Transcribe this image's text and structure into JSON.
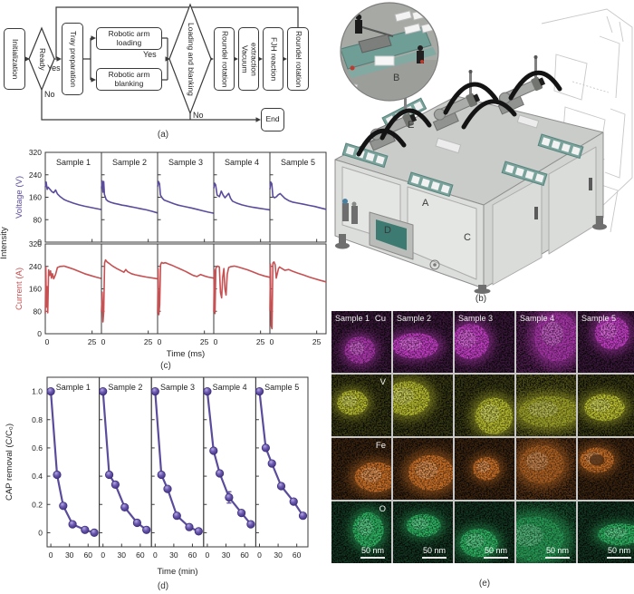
{
  "figure": {
    "captions": {
      "a": "(a)",
      "b": "(b)",
      "c": "(c)",
      "d": "(d)",
      "e": "(e)"
    }
  },
  "flowchart": {
    "nodes": {
      "initialization": "Initialization",
      "ready": "Ready",
      "tray_preparation": "Tray preparation",
      "robotic_arm_loading": "Robotic arm loading",
      "robotic_arm_blanking": "Robotic arm blanking",
      "loading_and_blanking": "Loading and blanking",
      "roundel_rotation_1": "Roundel rotation",
      "vacuum_extraction": "Vacuum extraction",
      "fjh_reaction": "FJH reaction",
      "roundel_rotation_2": "Roundel rotation",
      "end": "End"
    },
    "labels": {
      "ready_yes": "Yes",
      "ready_no": "No",
      "loading_yes": "Yes",
      "loading_no": "No"
    }
  },
  "machine": {
    "labels": {
      "a": "A",
      "b": "B",
      "c": "C",
      "d": "D",
      "e": "E"
    }
  },
  "chart_data": [
    {
      "type": "line",
      "panel": "c-top",
      "title": "Voltage traces of FJH reactions",
      "ylabel": "Voltage (V)",
      "group_ylabel": "Intensity",
      "xlabel": "Time (ms)",
      "color": "#5b4b9c",
      "ylim": [
        0,
        320
      ],
      "yticks": [
        0,
        80,
        160,
        240,
        320
      ],
      "xlim": [
        0,
        30
      ],
      "xticks": [
        0,
        25
      ],
      "series": [
        {
          "name": "Sample 1",
          "points": [
            [
              0,
              196
            ],
            [
              0.5,
              214
            ],
            [
              1,
              188
            ],
            [
              1.5,
              196
            ],
            [
              2.5,
              188
            ],
            [
              3.5,
              180
            ],
            [
              4.5,
              176
            ],
            [
              5.5,
              186
            ],
            [
              6.5,
              172
            ],
            [
              8,
              162
            ],
            [
              10,
              152
            ],
            [
              12,
              146
            ],
            [
              15,
              139
            ],
            [
              18,
              133
            ],
            [
              21,
              128
            ],
            [
              24,
              124
            ],
            [
              27,
              120
            ],
            [
              30,
              116
            ]
          ]
        },
        {
          "name": "Sample 2",
          "points": [
            [
              0,
              192
            ],
            [
              0.4,
              218
            ],
            [
              0.8,
              178
            ],
            [
              1.2,
              216
            ],
            [
              1.6,
              170
            ],
            [
              2.5,
              152
            ],
            [
              3.5,
              146
            ],
            [
              5,
              142
            ],
            [
              7,
              138
            ],
            [
              9,
              135
            ],
            [
              11,
              132
            ],
            [
              13,
              130
            ],
            [
              15,
              127
            ],
            [
              18,
              123
            ],
            [
              21,
              119
            ],
            [
              24,
              115
            ],
            [
              27,
              110
            ],
            [
              30,
              104
            ]
          ]
        },
        {
          "name": "Sample 3",
          "points": [
            [
              0,
              198
            ],
            [
              0.5,
              216
            ],
            [
              1,
              208
            ],
            [
              1.5,
              168
            ],
            [
              2.5,
              157
            ],
            [
              3.5,
              150
            ],
            [
              5,
              146
            ],
            [
              7,
              141
            ],
            [
              9,
              136
            ],
            [
              11,
              132
            ],
            [
              13,
              129
            ],
            [
              15,
              126
            ],
            [
              18,
              122
            ],
            [
              21,
              117
            ],
            [
              24,
              112
            ],
            [
              27,
              107
            ],
            [
              30,
              103
            ]
          ]
        },
        {
          "name": "Sample 4",
          "points": [
            [
              0,
              192
            ],
            [
              0.5,
              210
            ],
            [
              1,
              204
            ],
            [
              1.8,
              168
            ],
            [
              3,
              162
            ],
            [
              4,
              182
            ],
            [
              5,
              168
            ],
            [
              6,
              158
            ],
            [
              7,
              166
            ],
            [
              8,
              174
            ],
            [
              9,
              156
            ],
            [
              10,
              146
            ],
            [
              12,
              140
            ],
            [
              15,
              133
            ],
            [
              18,
              128
            ],
            [
              21,
              124
            ],
            [
              24,
              121
            ],
            [
              27,
              118
            ],
            [
              30,
              115
            ]
          ]
        },
        {
          "name": "Sample 5",
          "points": [
            [
              0,
              188
            ],
            [
              0.5,
              214
            ],
            [
              1,
              208
            ],
            [
              1.6,
              163
            ],
            [
              2.5,
              158
            ],
            [
              3.5,
              162
            ],
            [
              4.5,
              169
            ],
            [
              5.5,
              173
            ],
            [
              6.5,
              166
            ],
            [
              8,
              156
            ],
            [
              10,
              148
            ],
            [
              12,
              143
            ],
            [
              15,
              139
            ],
            [
              18,
              135
            ],
            [
              21,
              131
            ],
            [
              24,
              127
            ],
            [
              27,
              122
            ],
            [
              30,
              117
            ]
          ]
        }
      ]
    },
    {
      "type": "line",
      "panel": "c-bottom",
      "title": "Current traces of FJH reactions",
      "ylabel": "Current (A)",
      "xlabel": "Time (ms)",
      "color": "#c75052",
      "ylim": [
        0,
        320
      ],
      "yticks": [
        0,
        80,
        160,
        240,
        320
      ],
      "xlim": [
        0,
        30
      ],
      "xticks": [
        0,
        25
      ],
      "series": [
        {
          "name": "Sample 1",
          "points": [
            [
              0,
              72
            ],
            [
              0.3,
              238
            ],
            [
              0.6,
              95
            ],
            [
              0.9,
              168
            ],
            [
              1.3,
              75
            ],
            [
              1.8,
              228
            ],
            [
              2.3,
              208
            ],
            [
              2.8,
              224
            ],
            [
              3.3,
              198
            ],
            [
              3.8,
              214
            ],
            [
              4.5,
              196
            ],
            [
              5.5,
              212
            ],
            [
              6.5,
              236
            ],
            [
              8,
              240
            ],
            [
              10,
              241
            ],
            [
              12,
              237
            ],
            [
              15,
              230
            ],
            [
              18,
              222
            ],
            [
              21,
              214
            ],
            [
              24,
              208
            ],
            [
              27,
              202
            ],
            [
              30,
              197
            ]
          ]
        },
        {
          "name": "Sample 2",
          "points": [
            [
              0,
              78
            ],
            [
              0.4,
              148
            ],
            [
              0.8,
              42
            ],
            [
              1.2,
              78
            ],
            [
              1.7,
              252
            ],
            [
              2.2,
              263
            ],
            [
              3,
              256
            ],
            [
              4,
              251
            ],
            [
              5,
              246
            ],
            [
              6,
              241
            ],
            [
              8,
              233
            ],
            [
              10,
              226
            ],
            [
              12,
              219
            ],
            [
              13,
              229
            ],
            [
              14,
              221
            ],
            [
              16,
              214
            ],
            [
              18,
              210
            ],
            [
              21,
              206
            ],
            [
              24,
              202
            ],
            [
              27,
              199
            ],
            [
              30,
              196
            ]
          ]
        },
        {
          "name": "Sample 3",
          "points": [
            [
              0,
              74
            ],
            [
              0.3,
              232
            ],
            [
              0.7,
              68
            ],
            [
              1.1,
              102
            ],
            [
              1.6,
              246
            ],
            [
              2.2,
              254
            ],
            [
              3,
              251
            ],
            [
              4,
              253
            ],
            [
              5,
              251
            ],
            [
              6,
              248
            ],
            [
              8,
              243
            ],
            [
              10,
              237
            ],
            [
              12,
              231
            ],
            [
              15,
              222
            ],
            [
              17,
              215
            ],
            [
              19,
              208
            ],
            [
              21,
              204
            ],
            [
              23,
              211
            ],
            [
              25,
              206
            ],
            [
              27,
              202
            ],
            [
              30,
              198
            ]
          ]
        },
        {
          "name": "Sample 4",
          "points": [
            [
              0,
              78
            ],
            [
              0.3,
              228
            ],
            [
              0.7,
              72
            ],
            [
              1.1,
              234
            ],
            [
              2,
              241
            ],
            [
              3,
              238
            ],
            [
              3.6,
              148
            ],
            [
              4.2,
              128
            ],
            [
              4.8,
              202
            ],
            [
              5.4,
              232
            ],
            [
              6,
              158
            ],
            [
              6.6,
              138
            ],
            [
              7.2,
              212
            ],
            [
              8,
              236
            ],
            [
              9,
              239
            ],
            [
              11,
              241
            ],
            [
              13,
              238
            ],
            [
              15,
              234
            ],
            [
              18,
              228
            ],
            [
              21,
              220
            ],
            [
              24,
              212
            ],
            [
              27,
              206
            ],
            [
              30,
              201
            ]
          ]
        },
        {
          "name": "Sample 5",
          "points": [
            [
              0,
              82
            ],
            [
              0.3,
              248
            ],
            [
              0.7,
              28
            ],
            [
              1.1,
              18
            ],
            [
              1.6,
              252
            ],
            [
              2.2,
              256
            ],
            [
              2.8,
              246
            ],
            [
              3.4,
              198
            ],
            [
              4,
              216
            ],
            [
              4.6,
              232
            ],
            [
              5.2,
              238
            ],
            [
              6,
              234
            ],
            [
              8,
              226
            ],
            [
              10,
              229
            ],
            [
              12,
              223
            ],
            [
              15,
              216
            ],
            [
              18,
              209
            ],
            [
              21,
              202
            ],
            [
              24,
              196
            ],
            [
              27,
              190
            ],
            [
              30,
              185
            ]
          ]
        }
      ]
    },
    {
      "type": "line-scatter",
      "panel": "d",
      "title": "CAP removal kinetics",
      "ylabel": "CAP removal (C/C₀)",
      "xlabel": "Time (min)",
      "color": "#5b4b9c",
      "ylim": [
        -0.1,
        1.1
      ],
      "yticks": [
        0,
        0.2,
        0.4,
        0.6,
        0.8,
        1.0
      ],
      "ytick_labels": [
        "0",
        "0.2",
        "0.4",
        "0.6",
        "0.8",
        "1.0"
      ],
      "xlim": [
        -6,
        78
      ],
      "xticks": [
        0,
        30,
        60
      ],
      "x": [
        0,
        10,
        20,
        35,
        55,
        70
      ],
      "series": [
        {
          "name": "Sample 1",
          "values": [
            1.0,
            0.41,
            0.19,
            0.06,
            0.02,
            0.0
          ]
        },
        {
          "name": "Sample 2",
          "values": [
            1.0,
            0.41,
            0.34,
            0.18,
            0.07,
            0.02
          ]
        },
        {
          "name": "Sample 3",
          "values": [
            1.0,
            0.41,
            0.31,
            0.12,
            0.04,
            0.01
          ]
        },
        {
          "name": "Sample 4",
          "values": [
            1.0,
            0.58,
            0.42,
            0.25,
            0.14,
            0.06
          ],
          "errors": [
            0,
            0,
            0,
            0.04,
            0,
            0
          ]
        },
        {
          "name": "Sample 5",
          "values": [
            1.0,
            0.6,
            0.49,
            0.33,
            0.22,
            0.12
          ]
        }
      ]
    }
  ],
  "eds": {
    "rows": [
      {
        "element": "Cu",
        "color": "#c73fc9"
      },
      {
        "element": "V",
        "color": "#bcc02f"
      },
      {
        "element": "Fe",
        "color": "#cd7228"
      },
      {
        "element": "O",
        "color": "#2eb864"
      }
    ],
    "samples": [
      "Sample 1",
      "Sample 2",
      "Sample 3",
      "Sample 4",
      "Sample 5"
    ],
    "scale_bar": "50 nm"
  }
}
